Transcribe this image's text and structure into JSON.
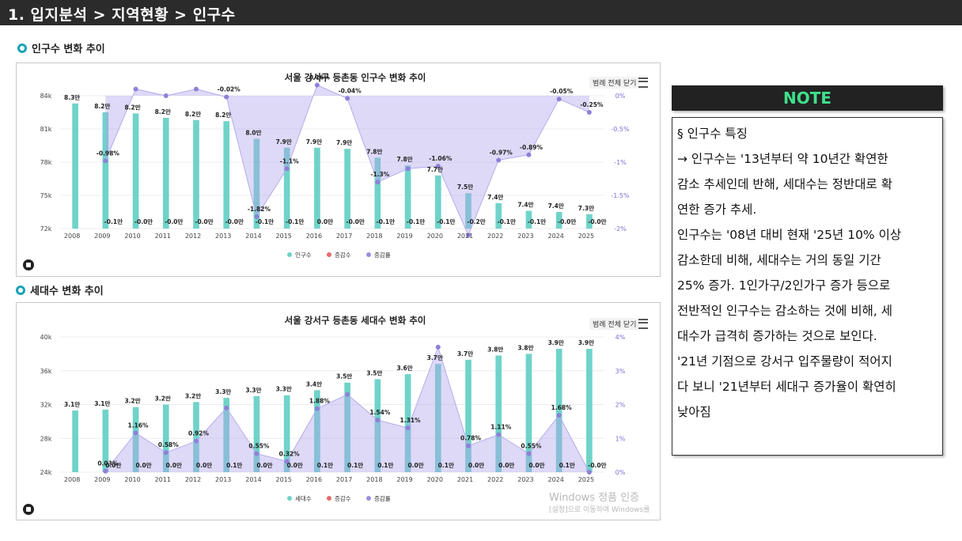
{
  "header": {
    "title": "1. 입지분석 > 지역현황 > 인구수"
  },
  "sections": {
    "population": "인구수 변화 추이",
    "households": "세대수 변화 추이"
  },
  "legend_button": "범례 전체 닫기",
  "note": {
    "title": "NOTE",
    "lines": [
      "§ 인구수 특징",
      "→ 인구수는 '13년부터 약 10년간 확연한",
      "감소 추세인데 반해, 세대수는 정반대로 확",
      "연한 증가 추세.",
      "인구수는 '08년 대비 현재 '25년 10% 이상",
      "감소한데 비해, 세대수는 거의 동일 기간",
      "25% 증가. 1인가구/2인가구 증가 등으로",
      "전반적인 인구수는 감소하는 것에 비해, 세",
      "대수가 급격히 증가하는 것으로 보인다.",
      "'21년 기점으로 강서구 입주물량이 적어지",
      "다 보니 '21년부터 세대구 증가율이 확연히",
      "낮아짐"
    ]
  },
  "watermark": {
    "line1": "Windows 정품 인증",
    "line2": "[설정]으로 이동하여 Windows를"
  },
  "chart_data": [
    {
      "type": "bar",
      "title": "서울 강서구 등촌동 인구수 변화 추이",
      "categories": [
        "2008",
        "2009",
        "2010",
        "2011",
        "2012",
        "2013",
        "2014",
        "2015",
        "2016",
        "2017",
        "2018",
        "2019",
        "2020",
        "2021",
        "2022",
        "2023",
        "2024",
        "2025"
      ],
      "y_ticks": [
        "84k",
        "81k",
        "78k",
        "75k",
        "72k"
      ],
      "y2_ticks": [
        "0%",
        "-0.5%",
        "-1%",
        "-1.5%",
        "-2%"
      ],
      "ylim": [
        72000,
        84000
      ],
      "y2lim": [
        -2.0,
        0.0
      ],
      "legend": [
        "인구수",
        "증감수",
        "증감률"
      ],
      "series": [
        {
          "name": "인구수",
          "color": "#6fd3c9",
          "values": [
            83300,
            82500,
            82400,
            82000,
            81800,
            81700,
            80100,
            79300,
            79300,
            79200,
            78400,
            77700,
            76800,
            75200,
            74300,
            73600,
            73500,
            73300
          ],
          "labels": [
            "8.3만",
            "8.2만",
            "8.2만",
            "8.2만",
            "8.2만",
            "8.2만",
            "8.0만",
            "7.9만",
            "7.9만",
            "7.9만",
            "7.8만",
            "7.8만",
            "7.7만",
            "7.5만",
            "7.4만",
            "7.4만",
            "7.4만",
            "7.3만"
          ]
        },
        {
          "name": "증감수",
          "color": "#e86a6a",
          "labels": [
            "",
            "-0.1만",
            "-0.0만",
            "-0.0만",
            "-0.0만",
            "-0.0만",
            "-0.1만",
            "-0.1만",
            "0.0만",
            "-0.0만",
            "-0.1만",
            "-0.1만",
            "-0.1만",
            "-0.2만",
            "-0.1만",
            "-0.1만",
            "-0.0만",
            "-0.0만"
          ]
        },
        {
          "name": "증감률",
          "color": "#9d8ee0",
          "values": [
            null,
            -0.98,
            0.1,
            0.0,
            0.1,
            -0.02,
            -1.82,
            -1.1,
            0.16,
            -0.04,
            -1.3,
            -1.1,
            -1.06,
            -2.1,
            -0.97,
            -0.89,
            -0.05,
            -0.25
          ],
          "labels": [
            "",
            "-0.98%",
            "",
            "",
            "",
            "-0.02%",
            "-1.82%",
            "-1.1%",
            "0.16%",
            "-0.04%",
            "-1.3%",
            "",
            "-1.06%",
            "",
            "-0.97%",
            "-0.89%",
            "-0.05%",
            "-0.25%"
          ]
        }
      ]
    },
    {
      "type": "bar",
      "title": "서울 강서구 등촌동 세대수 변화 추이",
      "categories": [
        "2008",
        "2009",
        "2010",
        "2011",
        "2012",
        "2013",
        "2014",
        "2015",
        "2016",
        "2017",
        "2018",
        "2019",
        "2020",
        "2021",
        "2022",
        "2023",
        "2024",
        "2025"
      ],
      "y_ticks": [
        "40k",
        "36k",
        "32k",
        "28k",
        "24k"
      ],
      "y2_ticks": [
        "4%",
        "3%",
        "2%",
        "1%",
        "0%"
      ],
      "ylim": [
        24000,
        40000
      ],
      "y2lim": [
        0,
        4
      ],
      "legend": [
        "세대수",
        "증감수",
        "증감률"
      ],
      "series": [
        {
          "name": "세대수",
          "color": "#6fd3c9",
          "values": [
            31300,
            31400,
            31700,
            32000,
            32300,
            32800,
            33000,
            33100,
            33700,
            34600,
            35000,
            35600,
            36800,
            37300,
            37800,
            38000,
            38600,
            38600
          ],
          "labels": [
            "3.1만",
            "3.1만",
            "3.2만",
            "3.2만",
            "3.2만",
            "3.3만",
            "3.3만",
            "3.3만",
            "3.4만",
            "3.5만",
            "3.5만",
            "3.6만",
            "3.7만",
            "3.7만",
            "3.8만",
            "3.8만",
            "3.9만",
            "3.9만"
          ]
        },
        {
          "name": "증감수",
          "color": "#e86a6a",
          "labels": [
            "",
            "0.0만",
            "0.0만",
            "0.0만",
            "0.0만",
            "0.1만",
            "0.0만",
            "0.0만",
            "0.1만",
            "0.1만",
            "0.1만",
            "0.0만",
            "0.1만",
            "0.0만",
            "0.0만",
            "0.0만",
            "0.1만",
            "-0.0만"
          ]
        },
        {
          "name": "증감률",
          "color": "#9d8ee0",
          "values": [
            null,
            0.03,
            1.16,
            0.58,
            0.92,
            1.9,
            0.55,
            0.32,
            1.88,
            2.3,
            1.54,
            1.31,
            3.7,
            0.78,
            1.11,
            0.55,
            1.68,
            0.0
          ],
          "labels": [
            "",
            "0.03%",
            "1.16%",
            "0.58%",
            "0.92%",
            "",
            "0.55%",
            "0.32%",
            "1.88%",
            "",
            "1.54%",
            "1.31%",
            "",
            "0.78%",
            "1.11%",
            "0.55%",
            "1.68%",
            ""
          ]
        }
      ]
    }
  ]
}
